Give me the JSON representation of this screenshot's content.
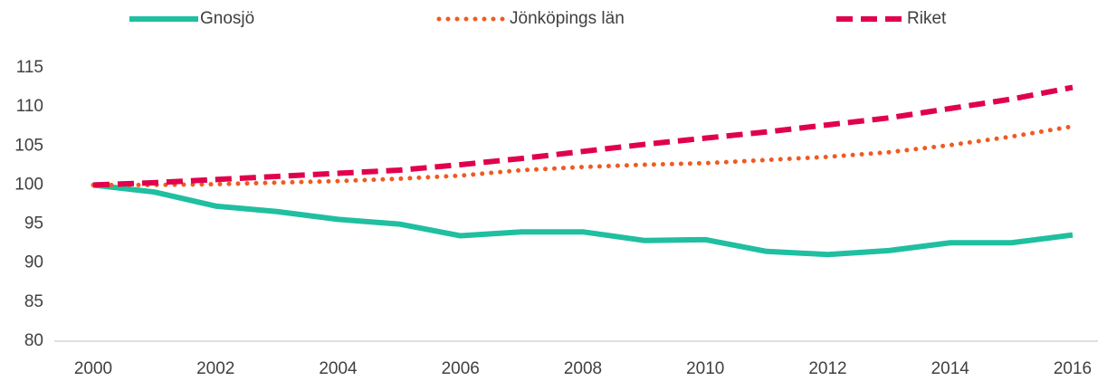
{
  "chart_data": {
    "type": "line",
    "x": [
      2000,
      2001,
      2002,
      2003,
      2004,
      2005,
      2006,
      2007,
      2008,
      2009,
      2010,
      2011,
      2012,
      2013,
      2014,
      2015,
      2016
    ],
    "series": [
      {
        "name": "Gnosjö",
        "color": "#1fbfa0",
        "style": "solid",
        "values": [
          100,
          99.1,
          97.3,
          96.6,
          95.6,
          95.0,
          93.5,
          94.0,
          94.0,
          92.9,
          93.0,
          91.5,
          91.1,
          91.6,
          92.6,
          92.6,
          93.6
        ]
      },
      {
        "name": "Jönköpings län",
        "color": "#f05a22",
        "style": "dotted",
        "values": [
          100,
          100.0,
          100.1,
          100.3,
          100.5,
          100.8,
          101.2,
          101.9,
          102.3,
          102.6,
          102.8,
          103.2,
          103.6,
          104.2,
          105.1,
          106.2,
          107.5
        ]
      },
      {
        "name": "Riket",
        "color": "#e0004d",
        "style": "dashed",
        "values": [
          100,
          100.3,
          100.7,
          101.1,
          101.5,
          101.9,
          102.6,
          103.4,
          104.3,
          105.2,
          106.0,
          106.8,
          107.7,
          108.6,
          109.8,
          111.0,
          112.5
        ]
      }
    ],
    "xlim": [
      2000,
      2016
    ],
    "xticks": [
      2000,
      2002,
      2004,
      2006,
      2008,
      2010,
      2012,
      2014,
      2016
    ],
    "ylim": [
      80,
      115
    ],
    "yticks": [
      80,
      85,
      90,
      95,
      100,
      105,
      110,
      115
    ],
    "grid": false,
    "legend": "top"
  }
}
